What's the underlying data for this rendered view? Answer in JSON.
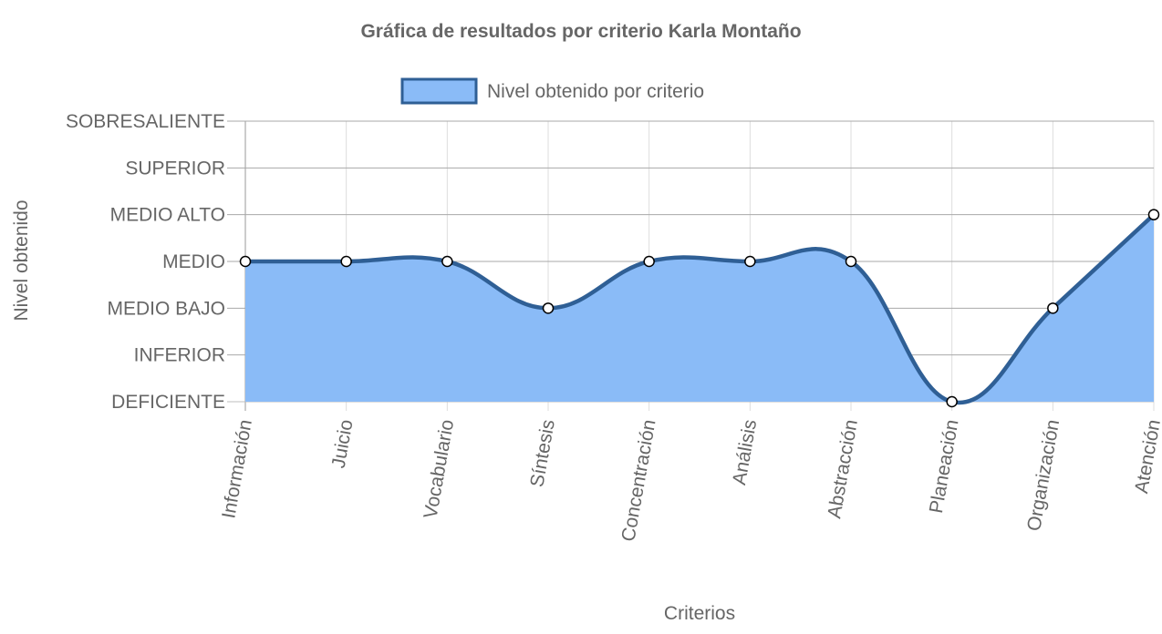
{
  "chart_data": {
    "type": "area",
    "title": "Gráfica de resultados por criterio Karla Montaño",
    "xlabel": "Criterios",
    "ylabel": "Nivel obtenido",
    "categories": [
      "Información",
      "Juicio",
      "Vocabulario",
      "Síntesis",
      "Concentración",
      "Análisis",
      "Abstracción",
      "Planeación",
      "Organización",
      "Atención"
    ],
    "y_levels": [
      "DEFICIENTE",
      "INFERIOR",
      "MEDIO BAJO",
      "MEDIO",
      "MEDIO ALTO",
      "SUPERIOR",
      "SOBRESALIENTE"
    ],
    "series": [
      {
        "name": "Nivel obtenido por criterio",
        "values": [
          "MEDIO",
          "MEDIO",
          "MEDIO",
          "MEDIO BAJO",
          "MEDIO",
          "MEDIO",
          "MEDIO",
          "DEFICIENTE",
          "MEDIO BAJO",
          "MEDIO ALTO"
        ],
        "line_color": "#2f5f95",
        "fill_color": "#8abbf7"
      }
    ],
    "grid": true,
    "legend_position": "top",
    "x_tick_rotation_deg": -80
  }
}
